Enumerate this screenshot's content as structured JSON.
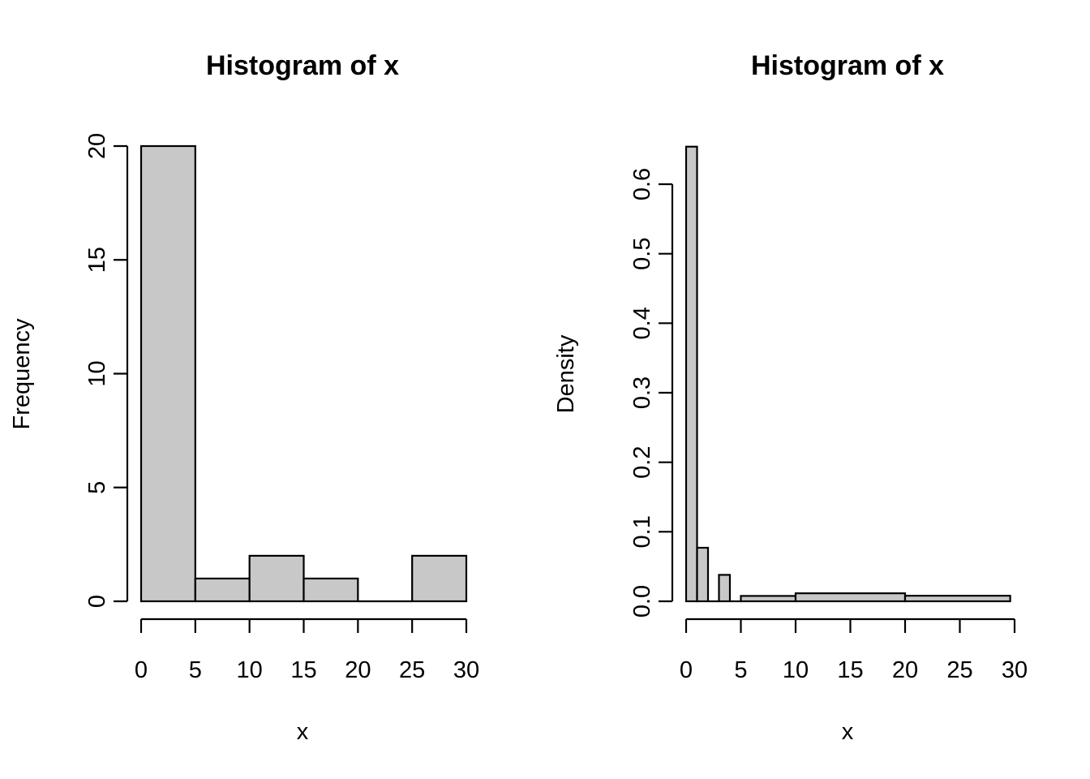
{
  "chart_data": [
    {
      "type": "bar",
      "subtype": "histogram",
      "title": "Histogram of x",
      "xlabel": "x",
      "ylabel": "Frequency",
      "bins": [
        [
          0,
          5
        ],
        [
          5,
          10
        ],
        [
          10,
          15
        ],
        [
          15,
          20
        ],
        [
          20,
          25
        ],
        [
          25,
          30
        ]
      ],
      "values": [
        20,
        1,
        2,
        1,
        0,
        2
      ],
      "xlim": [
        0,
        30
      ],
      "ylim": [
        0,
        20
      ],
      "xticks": [
        0,
        5,
        10,
        15,
        20,
        25,
        30
      ],
      "yticks": [
        0,
        5,
        10,
        15,
        20
      ],
      "xtick_labels": [
        "0",
        "5",
        "10",
        "15",
        "20",
        "25",
        "30"
      ],
      "ytick_labels": [
        "0",
        "5",
        "10",
        "15",
        "20"
      ],
      "grid": false,
      "bar_color": "#c8c8c8"
    },
    {
      "type": "bar",
      "subtype": "histogram",
      "title": "Histogram of x",
      "xlabel": "x",
      "ylabel": "Density",
      "bins": [
        [
          0,
          1
        ],
        [
          1,
          2
        ],
        [
          2,
          3
        ],
        [
          3,
          4
        ],
        [
          4,
          5
        ],
        [
          5,
          10
        ],
        [
          10,
          20
        ],
        [
          20,
          29.6
        ]
      ],
      "values": [
        0.654,
        0.077,
        0,
        0.038,
        0,
        0.0077,
        0.0115,
        0.008
      ],
      "xlim": [
        0,
        30
      ],
      "ylim": [
        0,
        0.6
      ],
      "xticks": [
        0,
        5,
        10,
        15,
        20,
        25,
        30
      ],
      "yticks": [
        0.0,
        0.1,
        0.2,
        0.3,
        0.4,
        0.5,
        0.6
      ],
      "xtick_labels": [
        "0",
        "5",
        "10",
        "15",
        "20",
        "25",
        "30"
      ],
      "ytick_labels": [
        "0.0",
        "0.1",
        "0.2",
        "0.3",
        "0.4",
        "0.5",
        "0.6"
      ],
      "grid": false,
      "bar_color": "#c8c8c8"
    }
  ]
}
